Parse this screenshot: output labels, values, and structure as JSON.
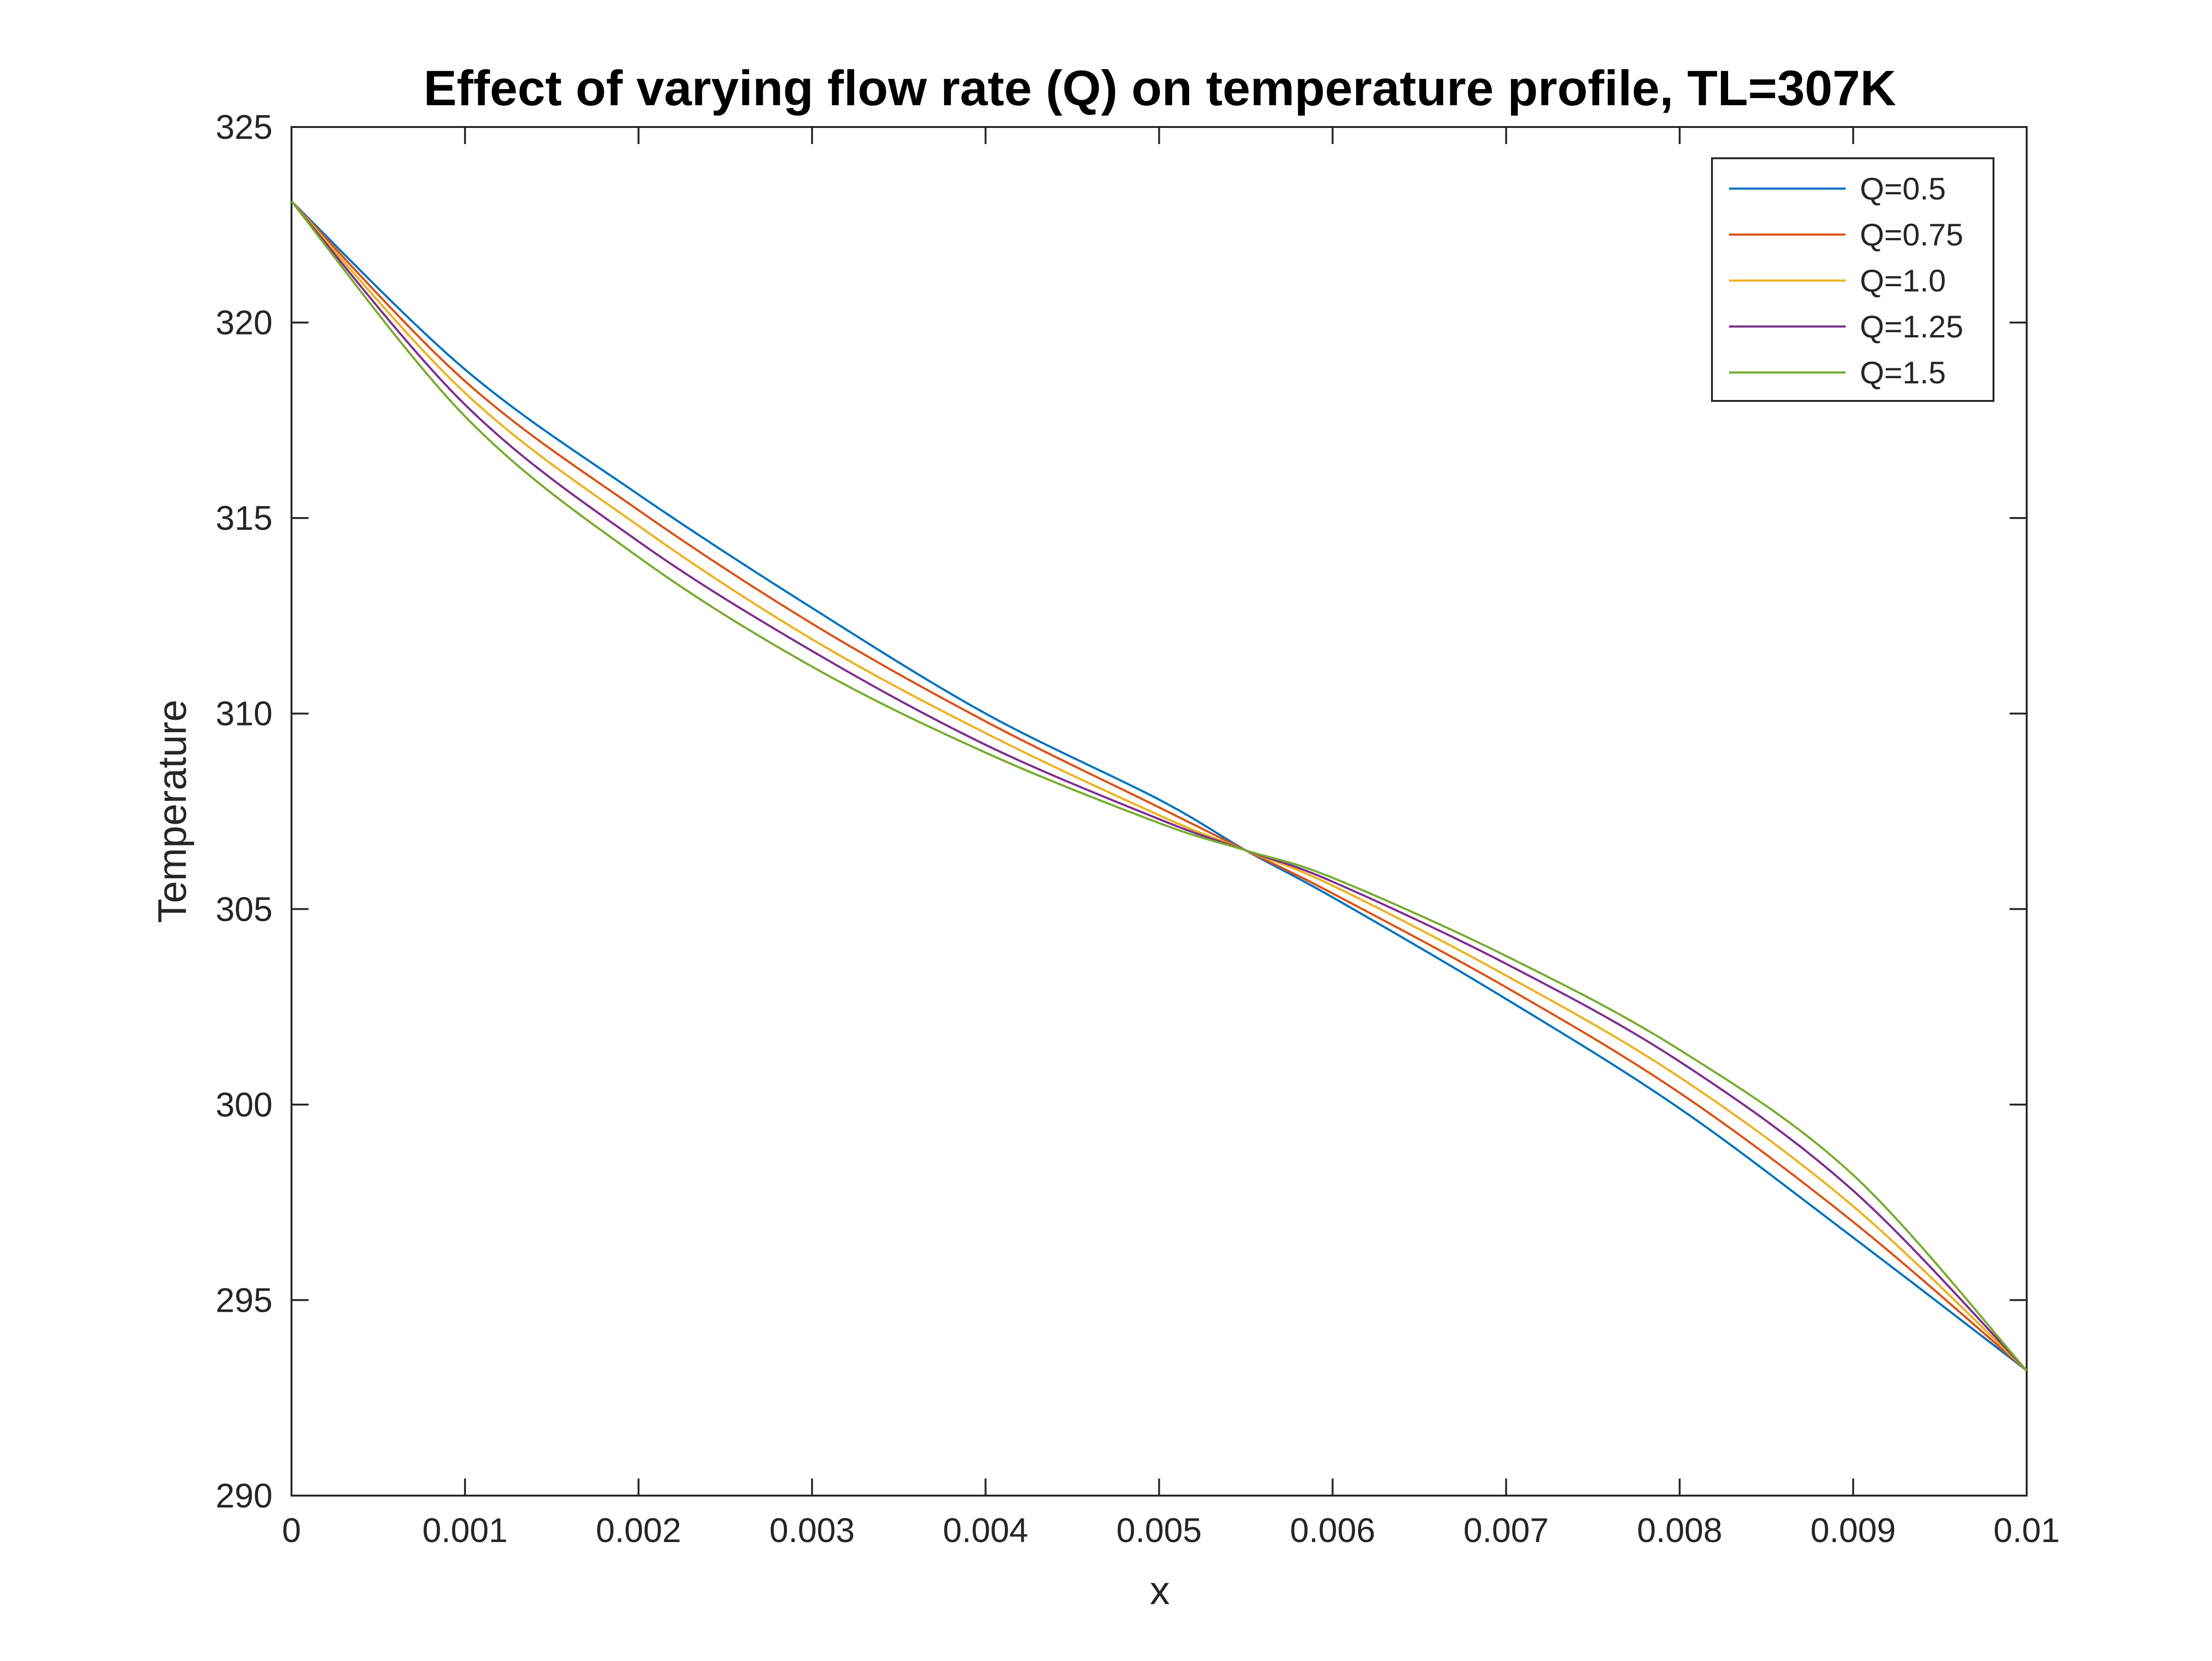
{
  "chart_data": {
    "type": "line",
    "title": "Effect of varying flow rate (Q) on temperature profile, TL=307K",
    "xlabel": "x",
    "ylabel": "Temperature",
    "xlim": [
      0,
      0.01
    ],
    "ylim": [
      290,
      325
    ],
    "xticks": [
      "0",
      "0.001",
      "0.002",
      "0.003",
      "0.004",
      "0.005",
      "0.006",
      "0.007",
      "0.008",
      "0.009",
      "0.01"
    ],
    "yticks": [
      "290",
      "295",
      "300",
      "305",
      "310",
      "315",
      "320",
      "325"
    ],
    "grid": false,
    "legend_position": "top-right",
    "x": [
      0,
      0.001,
      0.002,
      0.003,
      0.004,
      0.005,
      0.0055,
      0.006,
      0.007,
      0.008,
      0.009,
      0.01
    ],
    "series": [
      {
        "name": "Q=0.5",
        "color": "#0072BD",
        "values": [
          323.1,
          318.8,
          315.6,
          312.7,
          310.0,
          307.8,
          306.5,
          305.3,
          302.7,
          299.9,
          296.6,
          293.2
        ]
      },
      {
        "name": "Q=0.75",
        "color": "#D95319",
        "values": [
          323.1,
          318.5,
          315.2,
          312.3,
          309.8,
          307.6,
          306.5,
          305.4,
          303.0,
          300.3,
          297.0,
          293.2
        ]
      },
      {
        "name": "Q=1.0",
        "color": "#EDB120",
        "values": [
          323.1,
          318.2,
          314.8,
          311.9,
          309.5,
          307.4,
          306.5,
          305.6,
          303.3,
          300.7,
          297.4,
          293.2
        ]
      },
      {
        "name": "Q=1.25",
        "color": "#7E2F8E",
        "values": [
          323.1,
          317.9,
          314.4,
          311.6,
          309.2,
          307.3,
          306.5,
          305.7,
          303.6,
          301.1,
          297.8,
          293.2
        ]
      },
      {
        "name": "Q=1.5",
        "color": "#77AC30",
        "values": [
          323.1,
          317.6,
          314.0,
          311.2,
          309.0,
          307.2,
          306.5,
          305.8,
          303.8,
          301.4,
          298.2,
          293.2
        ]
      }
    ]
  }
}
